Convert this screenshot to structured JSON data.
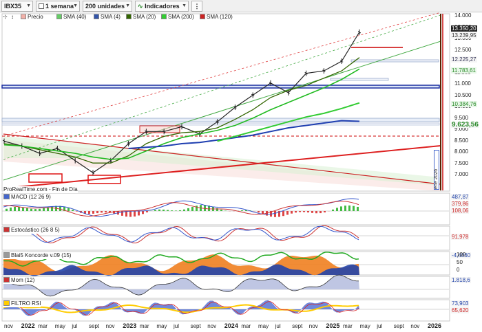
{
  "toolbar": {
    "instrument": "IBX35",
    "timeframe": "1 semana",
    "units": "200 unidades",
    "indicators": "Indicadores"
  },
  "legend": [
    {
      "label": "Precio",
      "color": "#f2b0a8"
    },
    {
      "label": "SMA (40)",
      "color": "#66cc66"
    },
    {
      "label": "SMA (4)",
      "color": "#3355aa"
    },
    {
      "label": "SMA (20)",
      "color": "#336600"
    },
    {
      "label": "SMA (200)",
      "color": "#33cc33"
    },
    {
      "label": "SMA (120)",
      "color": "#cc2222"
    }
  ],
  "price_axis": {
    "ticks": [
      "14.000",
      "13.500",
      "13.000",
      "12.500",
      "12.000",
      "11.500",
      "11.000",
      "10.500",
      "10.000",
      "9.500",
      "9.000",
      "8.500",
      "8.000",
      "7.500",
      "7.000"
    ],
    "boxes": [
      {
        "text": "13.350,20",
        "bg": "#222222",
        "fg": "#ffffff"
      },
      {
        "text": "13.239,95",
        "bg": "#f5f5f5",
        "fg": "#333333"
      },
      {
        "text": "12.225,27",
        "bg": "#f5f5f5",
        "fg": "#335"
      },
      {
        "text": "11.783,61",
        "bg": "#e8f7e8",
        "fg": "#2a8a2a"
      },
      {
        "text": "10.384,76",
        "bg": "#e8f7e8",
        "fg": "#2a8a2a"
      },
      {
        "text": "9.623,56",
        "bg": "#f5f5f5",
        "fg": "#2a8a2a"
      }
    ]
  },
  "watermark": "ProRealTime.com - Fin de Día",
  "vertical_label": "ene 2026",
  "panels": [
    {
      "name": "macd",
      "label": "MACD (12 26 9)",
      "color": "#4466cc",
      "values": [
        "487,87",
        "379,86",
        "108,06"
      ]
    },
    {
      "name": "estocastico",
      "label": "Estocástico (26 8 5)",
      "color": "#cc3333",
      "values": [
        "",
        "91,978"
      ]
    },
    {
      "name": "blai5",
      "label": "Blai5 Koncorde v.09 (15)",
      "color": "#999999",
      "ticks": [
        "100",
        "50",
        "0"
      ],
      "values": [
        "-4,4060"
      ]
    },
    {
      "name": "mom",
      "label": "Mom (12)",
      "color": "#cc3333",
      "values": [
        "1.818,6"
      ]
    },
    {
      "name": "filtro",
      "label": "FILTRO RSI",
      "color": "#ffcc00",
      "values": [
        "73,903",
        "65,620"
      ]
    }
  ],
  "x_axis": [
    {
      "t": "nov",
      "year": false
    },
    {
      "t": "2022",
      "year": true
    },
    {
      "t": "mar",
      "year": false
    },
    {
      "t": "may",
      "year": false
    },
    {
      "t": "jul",
      "year": false
    },
    {
      "t": "sept",
      "year": false
    },
    {
      "t": "nov",
      "year": false
    },
    {
      "t": "2023",
      "year": true
    },
    {
      "t": "mar",
      "year": false
    },
    {
      "t": "may",
      "year": false
    },
    {
      "t": "jul",
      "year": false
    },
    {
      "t": "sept",
      "year": false
    },
    {
      "t": "nov",
      "year": false
    },
    {
      "t": "2024",
      "year": true
    },
    {
      "t": "mar",
      "year": false
    },
    {
      "t": "may",
      "year": false
    },
    {
      "t": "jul",
      "year": false
    },
    {
      "t": "sept",
      "year": false
    },
    {
      "t": "nov",
      "year": false
    },
    {
      "t": "2025",
      "year": true
    },
    {
      "t": "mar",
      "year": false
    },
    {
      "t": "may",
      "year": false
    },
    {
      "t": "jul",
      "year": false
    },
    {
      "t": "sept",
      "year": false
    },
    {
      "t": "nov",
      "year": false
    },
    {
      "t": "2026",
      "year": true
    }
  ],
  "chart_data": {
    "type": "line",
    "title": "IBX35",
    "xlabel": "",
    "ylabel": "",
    "ylim": [
      6800,
      14000
    ],
    "x": [
      "2021-11",
      "2022-01",
      "2022-03",
      "2022-05",
      "2022-07",
      "2022-09",
      "2022-11",
      "2023-01",
      "2023-03",
      "2023-05",
      "2023-07",
      "2023-09",
      "2023-11",
      "2024-01",
      "2024-03",
      "2024-05",
      "2024-07",
      "2024-09",
      "2024-11",
      "2025-01",
      "2025-03"
    ],
    "series": [
      {
        "name": "Precio",
        "values": [
          8800,
          8600,
          8300,
          8500,
          8000,
          7500,
          8000,
          8700,
          9200,
          9200,
          9400,
          9100,
          9600,
          10200,
          10700,
          11200,
          10800,
          11600,
          11700,
          12100,
          13300
        ]
      },
      {
        "name": "SMA (20)",
        "values": [
          8700,
          8600,
          8450,
          8300,
          8150,
          7900,
          7900,
          8200,
          8700,
          9000,
          9150,
          9200,
          9350,
          9700,
          10100,
          10600,
          10900,
          11100,
          11400,
          11700,
          12250
        ]
      },
      {
        "name": "SMA (40)",
        "values": [
          8650,
          8600,
          8500,
          8400,
          8300,
          8150,
          8050,
          8100,
          8400,
          8700,
          8950,
          9100,
          9250,
          9450,
          9750,
          10100,
          10400,
          10700,
          11000,
          11350,
          11780
        ]
      },
      {
        "name": "SMA (120)",
        "values": [
          null,
          null,
          null,
          null,
          null,
          null,
          null,
          8500,
          8550,
          8600,
          8700,
          8750,
          8850,
          8950,
          9050,
          9200,
          9350,
          9450,
          9550,
          9650,
          9620
        ]
      },
      {
        "name": "SMA (200)",
        "values": [
          null,
          null,
          null,
          null,
          null,
          null,
          null,
          null,
          null,
          null,
          null,
          null,
          8800,
          9000,
          9200,
          9400,
          9600,
          9800,
          9950,
          10150,
          10380
        ]
      }
    ],
    "grid": false
  }
}
